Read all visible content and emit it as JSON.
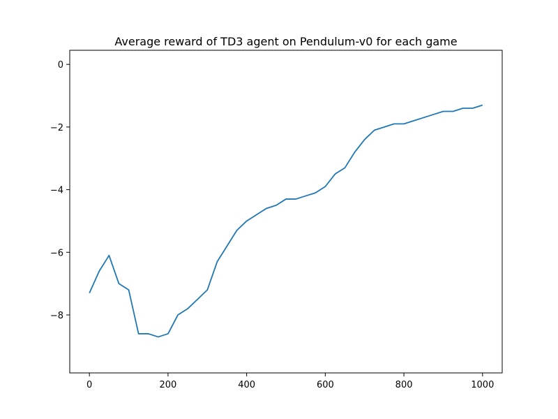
{
  "chart_data": {
    "type": "line",
    "title": "Average reward of TD3 agent on Pendulum-v0 for each game",
    "xlabel": "",
    "ylabel": "",
    "xlim": [
      -50,
      1050
    ],
    "ylim": [
      -9.85,
      0.45
    ],
    "x_ticks": [
      0,
      200,
      400,
      600,
      800,
      1000
    ],
    "x_tick_labels": [
      "0",
      "200",
      "400",
      "600",
      "800",
      "1000"
    ],
    "y_ticks": [
      0,
      -2,
      -4,
      -6,
      -8
    ],
    "y_tick_labels": [
      "0",
      "−2",
      "−4",
      "−6",
      "−8"
    ],
    "grid": false,
    "legend": "none",
    "colors": {
      "line": "#1f77b4",
      "axes": "#000000"
    },
    "series": [
      {
        "x": [
          0,
          25,
          50,
          75,
          100,
          125,
          150,
          175,
          200,
          225,
          250,
          275,
          300,
          325,
          350,
          375,
          400,
          425,
          450,
          475,
          500,
          525,
          550,
          575,
          600,
          625,
          650,
          675,
          700,
          725,
          750,
          775,
          800,
          825,
          850,
          875,
          900,
          925,
          950,
          975,
          1000
        ],
        "values": [
          -7.3,
          -6.6,
          -6.1,
          -7.0,
          -7.2,
          -8.6,
          -8.6,
          -8.7,
          -8.6,
          -8.0,
          -7.8,
          -7.5,
          -7.2,
          -6.3,
          -5.8,
          -5.3,
          -5.0,
          -4.8,
          -4.6,
          -4.5,
          -4.3,
          -4.3,
          -4.2,
          -4.1,
          -3.9,
          -3.5,
          -3.3,
          -2.8,
          -2.4,
          -2.1,
          -2.0,
          -1.9,
          -1.9,
          -1.8,
          -1.7,
          -1.6,
          -1.5,
          -1.5,
          -1.4,
          -1.4,
          -1.3
        ]
      }
    ]
  }
}
